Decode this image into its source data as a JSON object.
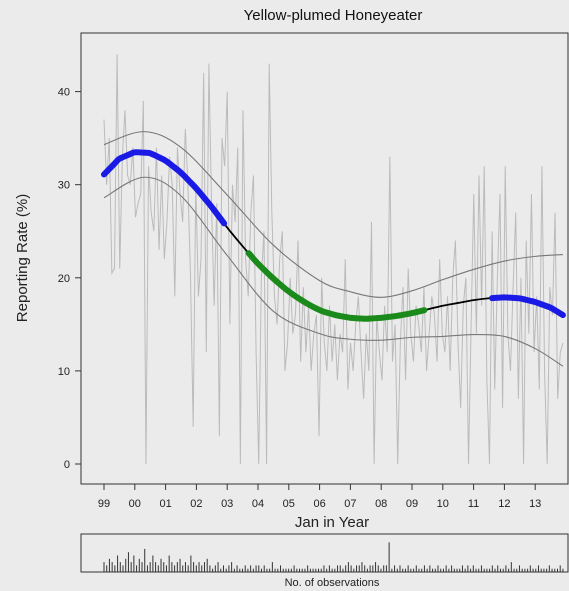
{
  "chart_data": [
    {
      "type": "line",
      "title": "Yellow-plumed Honeyeater",
      "xlabel": "Jan in Year",
      "ylabel": "Reporting Rate (%)",
      "xlim": [
        1999.0,
        2014.0
      ],
      "ylim": [
        0,
        45
      ],
      "x_ticks": [
        1999,
        2000,
        2001,
        2002,
        2003,
        2004,
        2005,
        2006,
        2007,
        2008,
        2009,
        2010,
        2011,
        2012,
        2013
      ],
      "x_tick_labels": [
        "99",
        "00",
        "01",
        "02",
        "03",
        "04",
        "05",
        "06",
        "07",
        "08",
        "09",
        "10",
        "11",
        "12",
        "13"
      ],
      "y_ticks": [
        0,
        10,
        20,
        30,
        40
      ],
      "grid": false,
      "series": [
        {
          "role": "trend",
          "color": "#000000",
          "x": [
            1999.0,
            1999.5,
            2000.0,
            2000.5,
            2001.0,
            2001.5,
            2002.0,
            2002.5,
            2003.0,
            2003.5,
            2004.0,
            2004.5,
            2005.0,
            2005.5,
            2006.0,
            2006.5,
            2007.0,
            2007.5,
            2008.0,
            2008.5,
            2009.0,
            2009.5,
            2010.0,
            2010.5,
            2011.0,
            2011.5,
            2012.0,
            2012.5,
            2013.0,
            2013.5,
            2013.9
          ],
          "y": [
            31.1,
            32.8,
            33.5,
            33.4,
            32.6,
            31.3,
            29.6,
            27.6,
            25.4,
            23.4,
            21.5,
            19.9,
            18.5,
            17.4,
            16.5,
            16.0,
            15.7,
            15.6,
            15.7,
            15.9,
            16.2,
            16.6,
            17.0,
            17.3,
            17.6,
            17.8,
            17.9,
            17.8,
            17.4,
            16.8,
            16.0
          ]
        },
        {
          "role": "upper_ci",
          "color": "#777777",
          "x": [
            1999.0,
            2000.3,
            2001.5,
            2003.0,
            2004.5,
            2006.0,
            2007.0,
            2008.0,
            2009.0,
            2010.0,
            2011.0,
            2012.0,
            2013.0,
            2013.9
          ],
          "y": [
            34.3,
            35.7,
            34.0,
            28.9,
            23.5,
            19.7,
            18.5,
            17.9,
            18.6,
            19.8,
            20.9,
            21.8,
            22.3,
            22.5
          ]
        },
        {
          "role": "lower_ci",
          "color": "#777777",
          "x": [
            1999.0,
            2000.3,
            2001.5,
            2003.0,
            2004.5,
            2006.0,
            2007.0,
            2008.0,
            2009.0,
            2010.0,
            2011.0,
            2012.0,
            2013.0,
            2013.9
          ],
          "y": [
            28.6,
            30.8,
            28.8,
            22.4,
            16.4,
            14.0,
            13.4,
            13.3,
            13.6,
            13.7,
            13.9,
            13.7,
            12.4,
            10.5
          ]
        }
      ],
      "highlight_segments": [
        {
          "color": "#1a1ae6",
          "x_range": [
            1999.0,
            2002.9
          ]
        },
        {
          "color": "#1a8a1a",
          "x_range": [
            2003.7,
            2009.4
          ]
        },
        {
          "color": "#1a1ae6",
          "x_range": [
            2011.6,
            2013.9
          ]
        }
      ],
      "raw_rates": {
        "color": "#bbbbbb",
        "x_start": 1999.0,
        "x_end": 2013.9,
        "y": [
          37,
          30,
          35,
          20.5,
          21,
          44,
          21,
          33,
          38,
          31,
          30,
          34,
          26.5,
          28,
          29,
          39,
          0,
          32,
          27,
          25,
          34,
          23,
          31,
          22,
          26,
          33,
          30,
          18,
          34,
          29,
          26,
          36,
          30,
          20,
          4,
          30,
          18,
          22,
          42,
          12,
          43,
          28,
          17,
          28,
          3,
          35,
          32,
          40,
          15,
          30,
          26,
          34,
          0,
          38,
          22,
          18,
          27,
          31,
          12,
          0,
          20,
          25,
          0,
          43,
          27,
          18,
          15,
          22,
          25,
          10,
          13,
          20,
          14,
          16,
          24,
          11,
          19,
          12,
          17,
          10,
          14,
          16,
          3,
          20,
          13,
          10,
          17,
          11,
          15,
          9,
          14,
          12,
          22,
          8,
          13,
          10,
          15,
          18,
          12,
          7,
          14,
          10,
          26,
          0,
          16,
          12,
          9,
          17,
          12,
          33,
          11,
          15,
          0,
          13,
          19,
          9,
          21,
          14,
          11,
          17,
          15,
          12,
          19,
          10,
          14,
          18,
          16,
          11,
          22,
          14,
          12,
          18,
          10,
          20,
          24,
          13,
          6,
          17,
          20,
          0,
          15,
          29,
          14,
          31,
          17,
          32,
          9,
          0,
          25,
          8,
          20,
          29,
          6,
          32,
          14,
          10,
          19,
          27,
          7,
          20,
          0,
          24,
          14,
          29,
          12,
          18,
          8,
          32,
          10,
          0,
          19,
          16,
          27,
          7,
          12,
          13
        ]
      }
    },
    {
      "type": "bar",
      "title": "No. of observations",
      "x_start": 1999.0,
      "x_end": 2013.9,
      "values": [
        3,
        2,
        4,
        3,
        2,
        5,
        3,
        2,
        4,
        6,
        3,
        5,
        2,
        4,
        3,
        7,
        2,
        3,
        5,
        3,
        2,
        4,
        3,
        2,
        5,
        3,
        2,
        3,
        4,
        2,
        3,
        2,
        5,
        3,
        2,
        3,
        2,
        3,
        4,
        2,
        1,
        2,
        3,
        1,
        2,
        1,
        2,
        3,
        1,
        2,
        1,
        1,
        2,
        1,
        2,
        1,
        2,
        2,
        1,
        2,
        1,
        1,
        3,
        1,
        1,
        2,
        1,
        1,
        1,
        1,
        2,
        1,
        1,
        1,
        1,
        2,
        1,
        1,
        1,
        1,
        1,
        2,
        1,
        2,
        1,
        1,
        2,
        2,
        1,
        2,
        3,
        2,
        1,
        2,
        2,
        3,
        2,
        1,
        2,
        2,
        3,
        2,
        1,
        2,
        2,
        9,
        1,
        2,
        1,
        2,
        1,
        1,
        2,
        1,
        1,
        2,
        1,
        1,
        2,
        1,
        2,
        1,
        1,
        2,
        1,
        1,
        2,
        1,
        2,
        1,
        1,
        1,
        2,
        1,
        2,
        1,
        2,
        1,
        1,
        2,
        1,
        1,
        1,
        2,
        1,
        2,
        1,
        1,
        2,
        1,
        3,
        1,
        1,
        2,
        1,
        1,
        1,
        2,
        1,
        1,
        2,
        1,
        1,
        1,
        2,
        1,
        1,
        1,
        2,
        1
      ]
    }
  ]
}
